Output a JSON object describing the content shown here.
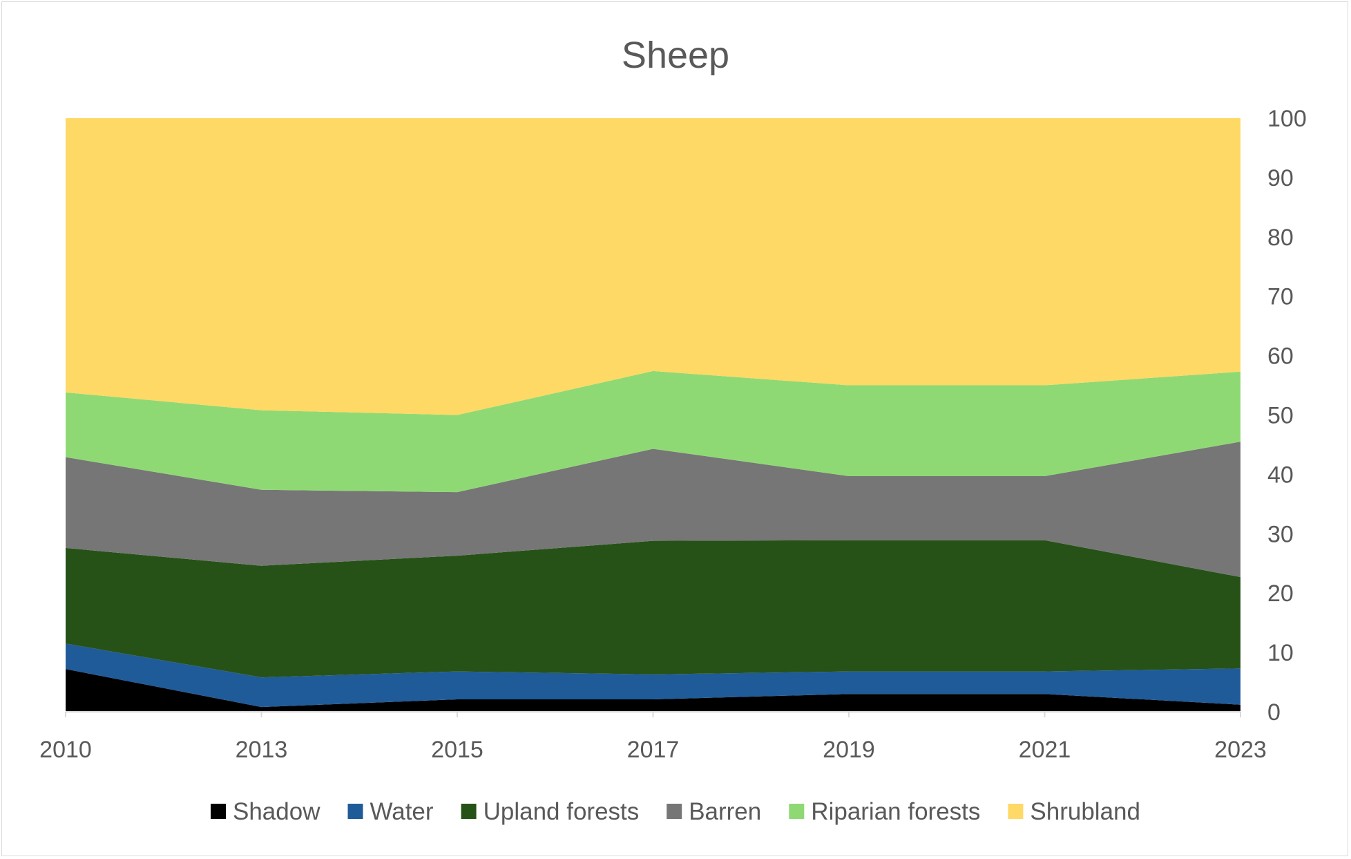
{
  "chart_data": {
    "type": "area",
    "stacked": true,
    "title": "Sheep",
    "xlabel": "",
    "ylabel": "",
    "x": [
      "2010",
      "2013",
      "2015",
      "2017",
      "2019",
      "2021",
      "2023"
    ],
    "ylim": [
      0,
      100
    ],
    "y_ticks": [
      0,
      10,
      20,
      30,
      40,
      50,
      60,
      70,
      80,
      90,
      100
    ],
    "y_axis_side": "right",
    "grid": false,
    "legend": "bottom",
    "series": [
      {
        "name": "Shadow",
        "color": "#000000",
        "values": [
          7.2,
          0.8,
          2.1,
          2.1,
          3.0,
          3.0,
          1.2
        ]
      },
      {
        "name": "Water",
        "color": "#1f5b99",
        "values": [
          4.3,
          5.0,
          4.7,
          4.2,
          3.8,
          3.8,
          6.1
        ]
      },
      {
        "name": "Upland forests",
        "color": "#265217",
        "values": [
          16.1,
          18.8,
          19.5,
          22.5,
          22.1,
          22.1,
          15.4
        ]
      },
      {
        "name": "Barren",
        "color": "#767676",
        "values": [
          15.3,
          12.8,
          10.7,
          15.5,
          10.8,
          10.8,
          22.8
        ]
      },
      {
        "name": "Riparian forests",
        "color": "#8fd974",
        "values": [
          10.9,
          13.4,
          13.0,
          13.1,
          15.3,
          15.3,
          11.8
        ]
      },
      {
        "name": "Shrubland",
        "color": "#ffd966",
        "values": [
          46.2,
          49.2,
          50.0,
          42.6,
          45.0,
          45.0,
          42.7
        ]
      }
    ]
  }
}
